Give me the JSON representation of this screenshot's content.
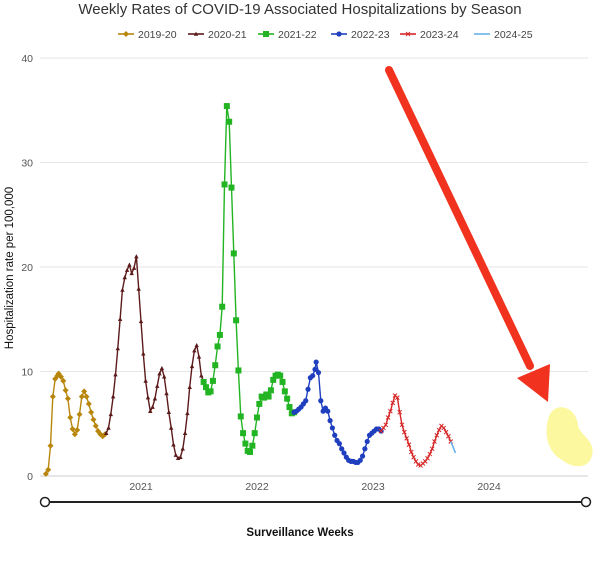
{
  "chart_data": {
    "type": "line",
    "title": "Weekly Rates of COVID-19 Associated Hospitalizations by Season",
    "xlabel": "Surveillance Weeks",
    "ylabel": "Hospitalization rate per 100,000",
    "ylim": [
      0,
      40
    ],
    "y_ticks": [
      "0",
      "10",
      "20",
      "30",
      "40"
    ],
    "x_ticks": [
      {
        "label": "2021",
        "x": 2021.0
      },
      {
        "label": "2022",
        "x": 2022.0
      },
      {
        "label": "2023",
        "x": 2023.0
      },
      {
        "label": "2024",
        "x": 2024.0
      }
    ],
    "xlim": [
      2020.15,
      2024.95
    ],
    "grid": "horizontal",
    "legend_position": "top",
    "series": [
      {
        "name": "2019-20",
        "color": "#b8860b",
        "marker": "diamond",
        "points": [
          [
            2020.18,
            0.2
          ],
          [
            2020.2,
            0.6
          ],
          [
            2020.22,
            2.9
          ],
          [
            2020.24,
            7.6
          ],
          [
            2020.26,
            9.3
          ],
          [
            2020.28,
            9.6
          ],
          [
            2020.29,
            9.8
          ],
          [
            2020.31,
            9.5
          ],
          [
            2020.33,
            9.1
          ],
          [
            2020.35,
            8.2
          ],
          [
            2020.37,
            7.4
          ],
          [
            2020.39,
            5.6
          ],
          [
            2020.41,
            4.5
          ],
          [
            2020.43,
            4.0
          ],
          [
            2020.45,
            4.4
          ],
          [
            2020.47,
            5.9
          ],
          [
            2020.49,
            7.6
          ],
          [
            2020.51,
            8.1
          ],
          [
            2020.53,
            7.6
          ],
          [
            2020.55,
            6.9
          ],
          [
            2020.57,
            6.1
          ],
          [
            2020.59,
            5.4
          ],
          [
            2020.61,
            4.8
          ],
          [
            2020.63,
            4.3
          ],
          [
            2020.65,
            4.0
          ],
          [
            2020.67,
            3.8
          ],
          [
            2020.69,
            4.0
          ]
        ]
      },
      {
        "name": "2020-21",
        "color": "#5c1a1a",
        "marker": "triangle",
        "points": [
          [
            2020.7,
            4.1
          ],
          [
            2020.72,
            4.6
          ],
          [
            2020.74,
            5.9
          ],
          [
            2020.76,
            7.6
          ],
          [
            2020.78,
            9.7
          ],
          [
            2020.8,
            12.2
          ],
          [
            2020.82,
            15.0
          ],
          [
            2020.84,
            17.8
          ],
          [
            2020.86,
            19.0
          ],
          [
            2020.88,
            19.7
          ],
          [
            2020.9,
            20.2
          ],
          [
            2020.92,
            19.4
          ],
          [
            2020.94,
            19.9
          ],
          [
            2020.96,
            21.0
          ],
          [
            2020.98,
            17.9
          ],
          [
            2021.0,
            14.8
          ],
          [
            2021.02,
            11.7
          ],
          [
            2021.04,
            9.1
          ],
          [
            2021.06,
            7.5
          ],
          [
            2021.08,
            6.2
          ],
          [
            2021.1,
            6.6
          ],
          [
            2021.12,
            7.4
          ],
          [
            2021.14,
            8.6
          ],
          [
            2021.16,
            9.8
          ],
          [
            2021.18,
            10.3
          ],
          [
            2021.2,
            9.5
          ],
          [
            2021.22,
            7.9
          ],
          [
            2021.24,
            6.1
          ],
          [
            2021.26,
            4.6
          ],
          [
            2021.28,
            3.0
          ],
          [
            2021.3,
            2.0
          ],
          [
            2021.32,
            1.7
          ],
          [
            2021.34,
            1.8
          ],
          [
            2021.36,
            2.6
          ],
          [
            2021.38,
            4.1
          ],
          [
            2021.4,
            6.0
          ],
          [
            2021.42,
            8.5
          ],
          [
            2021.44,
            10.5
          ],
          [
            2021.46,
            12.0
          ],
          [
            2021.48,
            12.5
          ],
          [
            2021.5,
            11.4
          ],
          [
            2021.52,
            9.6
          ],
          [
            2021.54,
            9.0
          ]
        ]
      },
      {
        "name": "2021-22",
        "color": "#22b422",
        "marker": "square",
        "points": [
          [
            2021.54,
            9.0
          ],
          [
            2021.56,
            8.5
          ],
          [
            2021.58,
            8.0
          ],
          [
            2021.6,
            8.1
          ],
          [
            2021.62,
            9.1
          ],
          [
            2021.64,
            10.6
          ],
          [
            2021.66,
            12.4
          ],
          [
            2021.68,
            13.5
          ],
          [
            2021.7,
            16.2
          ],
          [
            2021.72,
            27.9
          ],
          [
            2021.74,
            35.4
          ],
          [
            2021.76,
            33.9
          ],
          [
            2021.78,
            27.6
          ],
          [
            2021.8,
            21.3
          ],
          [
            2021.82,
            14.9
          ],
          [
            2021.84,
            10.1
          ],
          [
            2021.86,
            5.7
          ],
          [
            2021.88,
            4.1
          ],
          [
            2021.9,
            3.1
          ],
          [
            2021.92,
            2.4
          ],
          [
            2021.94,
            2.3
          ],
          [
            2021.96,
            2.9
          ],
          [
            2021.98,
            4.1
          ],
          [
            2022.0,
            5.6
          ],
          [
            2022.02,
            6.9
          ],
          [
            2022.04,
            7.6
          ],
          [
            2022.06,
            7.5
          ],
          [
            2022.08,
            7.8
          ],
          [
            2022.1,
            7.6
          ],
          [
            2022.12,
            8.2
          ],
          [
            2022.14,
            9.2
          ],
          [
            2022.16,
            9.6
          ],
          [
            2022.18,
            9.7
          ],
          [
            2022.2,
            9.6
          ],
          [
            2022.22,
            9.0
          ],
          [
            2022.24,
            8.1
          ],
          [
            2022.26,
            7.4
          ],
          [
            2022.28,
            6.6
          ],
          [
            2022.3,
            6.0
          ],
          [
            2022.32,
            6.1
          ]
        ]
      },
      {
        "name": "2022-23",
        "color": "#1f3fbf",
        "marker": "circle",
        "points": [
          [
            2022.32,
            6.1
          ],
          [
            2022.34,
            6.2
          ],
          [
            2022.36,
            6.4
          ],
          [
            2022.38,
            6.6
          ],
          [
            2022.4,
            6.9
          ],
          [
            2022.42,
            7.2
          ],
          [
            2022.44,
            8.3
          ],
          [
            2022.46,
            9.4
          ],
          [
            2022.48,
            9.6
          ],
          [
            2022.5,
            10.2
          ],
          [
            2022.51,
            10.9
          ],
          [
            2022.53,
            9.9
          ],
          [
            2022.55,
            7.2
          ],
          [
            2022.57,
            6.2
          ],
          [
            2022.59,
            6.5
          ],
          [
            2022.61,
            6.2
          ],
          [
            2022.63,
            5.3
          ],
          [
            2022.65,
            4.6
          ],
          [
            2022.67,
            3.9
          ],
          [
            2022.69,
            3.4
          ],
          [
            2022.71,
            3.1
          ],
          [
            2022.73,
            2.6
          ],
          [
            2022.75,
            2.2
          ],
          [
            2022.77,
            1.8
          ],
          [
            2022.79,
            1.5
          ],
          [
            2022.81,
            1.4
          ],
          [
            2022.83,
            1.4
          ],
          [
            2022.85,
            1.3
          ],
          [
            2022.87,
            1.3
          ],
          [
            2022.89,
            1.5
          ],
          [
            2022.91,
            1.9
          ],
          [
            2022.93,
            2.6
          ],
          [
            2022.95,
            3.3
          ],
          [
            2022.97,
            3.9
          ],
          [
            2022.99,
            4.1
          ],
          [
            2023.01,
            4.3
          ],
          [
            2023.03,
            4.5
          ],
          [
            2023.05,
            4.5
          ],
          [
            2023.07,
            4.3
          ]
        ]
      },
      {
        "name": "2023-24",
        "color": "#d62728",
        "marker": "cross",
        "points": [
          [
            2023.07,
            4.3
          ],
          [
            2023.09,
            4.6
          ],
          [
            2023.11,
            4.9
          ],
          [
            2023.13,
            5.6
          ],
          [
            2023.15,
            6.2
          ],
          [
            2023.17,
            7.0
          ],
          [
            2023.19,
            7.7
          ],
          [
            2023.21,
            7.5
          ],
          [
            2023.23,
            6.1
          ],
          [
            2023.25,
            4.9
          ],
          [
            2023.27,
            4.2
          ],
          [
            2023.29,
            3.6
          ],
          [
            2023.31,
            3.0
          ],
          [
            2023.33,
            2.3
          ],
          [
            2023.35,
            1.8
          ],
          [
            2023.37,
            1.4
          ],
          [
            2023.39,
            1.1
          ],
          [
            2023.41,
            1.0
          ],
          [
            2023.43,
            1.2
          ],
          [
            2023.45,
            1.4
          ],
          [
            2023.47,
            1.7
          ],
          [
            2023.49,
            2.1
          ],
          [
            2023.51,
            2.6
          ],
          [
            2023.53,
            3.3
          ],
          [
            2023.55,
            3.9
          ],
          [
            2023.57,
            4.4
          ],
          [
            2023.59,
            4.8
          ],
          [
            2023.61,
            4.6
          ],
          [
            2023.63,
            4.2
          ],
          [
            2023.65,
            3.8
          ],
          [
            2023.67,
            3.3
          ]
        ]
      },
      {
        "name": "2024-25",
        "color": "#6ab0e8",
        "marker": "none",
        "points": [
          [
            2023.67,
            3.3
          ],
          [
            2023.69,
            2.8
          ],
          [
            2023.71,
            2.2
          ]
        ]
      }
    ]
  }
}
